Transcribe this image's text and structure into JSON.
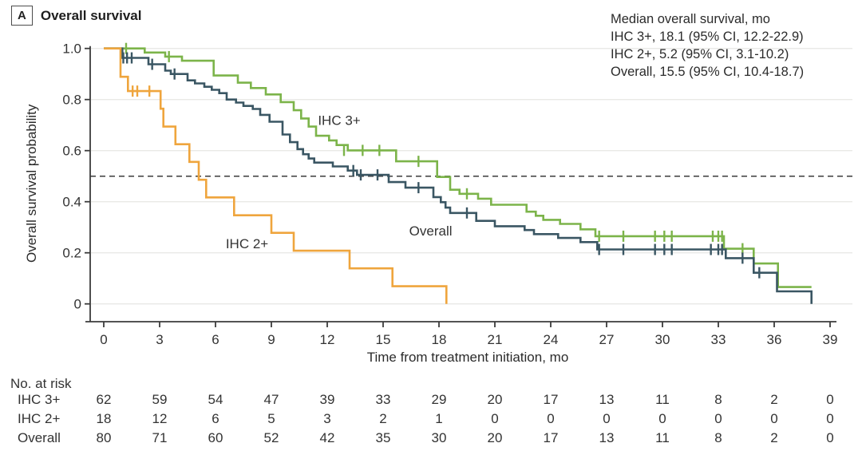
{
  "panel": {
    "badge": "A",
    "title": "Overall survival"
  },
  "legend": {
    "lines": [
      "Median overall survival, mo",
      "IHC 3+, 18.1 (95% CI, 12.2-22.9)",
      "IHC 2+, 5.2 (95% CI, 3.1-10.2)",
      "Overall, 15.5 (95% CI, 10.4-18.7)"
    ]
  },
  "chart_data": {
    "type": "line",
    "subtype": "kaplan-meier-step",
    "title": "Overall survival",
    "xlabel": "Time from treatment initiation, mo",
    "ylabel": "Overall survival probability",
    "xlim": [
      0,
      39
    ],
    "ylim": [
      0,
      1.0
    ],
    "x_ticks": [
      0,
      3,
      6,
      9,
      12,
      15,
      18,
      21,
      24,
      27,
      30,
      33,
      36,
      39
    ],
    "y_ticks": [
      {
        "label": "1.0",
        "value": 1.0
      },
      {
        "label": "0.8",
        "value": 0.8
      },
      {
        "label": "0.6",
        "value": 0.6
      },
      {
        "label": "0.4",
        "value": 0.4
      },
      {
        "label": "0.2",
        "value": 0.2
      },
      {
        "label": "0",
        "value": 0
      }
    ],
    "grid": true,
    "median_reference_line": 0.5,
    "colors": {
      "ihc3": "#7cb44a",
      "ihc2": "#efa53d",
      "overall": "#3a5663",
      "grid": "#e9e9e6",
      "axis": "#3b3b3b"
    },
    "series": [
      {
        "name": "IHC 3+",
        "color": "#7cb44a",
        "label_pos": [
          11.5,
          0.7
        ],
        "end": 38.0,
        "points": [
          [
            0,
            1
          ],
          [
            2.2,
            0.984
          ],
          [
            3.3,
            0.968
          ],
          [
            4.2,
            0.952
          ],
          [
            5.9,
            0.894
          ],
          [
            7.2,
            0.866
          ],
          [
            7.9,
            0.845
          ],
          [
            8.7,
            0.82
          ],
          [
            9.5,
            0.79
          ],
          [
            10.2,
            0.758
          ],
          [
            10.6,
            0.726
          ],
          [
            11.0,
            0.694
          ],
          [
            11.4,
            0.658
          ],
          [
            12.1,
            0.64
          ],
          [
            12.5,
            0.622
          ],
          [
            13.1,
            0.601
          ],
          [
            15.7,
            0.558
          ],
          [
            17.9,
            0.497
          ],
          [
            18.6,
            0.447
          ],
          [
            19.1,
            0.431
          ],
          [
            20.1,
            0.412
          ],
          [
            20.8,
            0.388
          ],
          [
            22.7,
            0.361
          ],
          [
            23.2,
            0.345
          ],
          [
            23.6,
            0.329
          ],
          [
            24.5,
            0.313
          ],
          [
            25.6,
            0.292
          ],
          [
            26.4,
            0.265
          ],
          [
            33.3,
            0.216
          ],
          [
            34.9,
            0.158
          ],
          [
            36.2,
            0.066
          ]
        ],
        "censors": [
          [
            1.2,
            1.0
          ],
          [
            3.5,
            0.968
          ],
          [
            12.9,
            0.601
          ],
          [
            13.9,
            0.601
          ],
          [
            14.8,
            0.601
          ],
          [
            16.9,
            0.558
          ],
          [
            19.5,
            0.431
          ],
          [
            26.6,
            0.265
          ],
          [
            27.9,
            0.265
          ],
          [
            29.6,
            0.265
          ],
          [
            30.1,
            0.265
          ],
          [
            30.5,
            0.265
          ],
          [
            32.7,
            0.265
          ],
          [
            33.0,
            0.265
          ],
          [
            33.2,
            0.265
          ],
          [
            34.3,
            0.216
          ]
        ]
      },
      {
        "name": "Overall",
        "color": "#3a5663",
        "label_pos": [
          16.4,
          0.268
        ],
        "end": 38.0,
        "points": [
          [
            0,
            1
          ],
          [
            1.0,
            0.963
          ],
          [
            2.4,
            0.938
          ],
          [
            3.3,
            0.913
          ],
          [
            3.6,
            0.9
          ],
          [
            4.5,
            0.875
          ],
          [
            4.9,
            0.863
          ],
          [
            5.4,
            0.85
          ],
          [
            5.8,
            0.838
          ],
          [
            6.2,
            0.825
          ],
          [
            6.6,
            0.8
          ],
          [
            7.1,
            0.788
          ],
          [
            7.5,
            0.775
          ],
          [
            8.0,
            0.763
          ],
          [
            8.4,
            0.74
          ],
          [
            8.9,
            0.713
          ],
          [
            9.6,
            0.663
          ],
          [
            10.0,
            0.633
          ],
          [
            10.4,
            0.606
          ],
          [
            10.7,
            0.586
          ],
          [
            11.0,
            0.569
          ],
          [
            11.3,
            0.553
          ],
          [
            12.3,
            0.538
          ],
          [
            13.1,
            0.522
          ],
          [
            13.6,
            0.505
          ],
          [
            15.3,
            0.477
          ],
          [
            16.2,
            0.455
          ],
          [
            17.7,
            0.418
          ],
          [
            18.1,
            0.398
          ],
          [
            18.35,
            0.377
          ],
          [
            18.6,
            0.356
          ],
          [
            20.0,
            0.325
          ],
          [
            21.0,
            0.304
          ],
          [
            22.6,
            0.289
          ],
          [
            23.1,
            0.273
          ],
          [
            24.4,
            0.258
          ],
          [
            25.6,
            0.242
          ],
          [
            26.5,
            0.213
          ],
          [
            33.4,
            0.179
          ],
          [
            34.9,
            0.122
          ],
          [
            36.15,
            0.049
          ],
          [
            38.0,
            0
          ]
        ],
        "censors": [
          [
            1.05,
            0.963
          ],
          [
            1.25,
            0.963
          ],
          [
            1.5,
            0.963
          ],
          [
            2.6,
            0.938
          ],
          [
            3.8,
            0.9
          ],
          [
            13.4,
            0.522
          ],
          [
            13.8,
            0.505
          ],
          [
            14.7,
            0.505
          ],
          [
            16.9,
            0.455
          ],
          [
            19.5,
            0.356
          ],
          [
            26.6,
            0.213
          ],
          [
            27.9,
            0.213
          ],
          [
            29.6,
            0.213
          ],
          [
            30.1,
            0.213
          ],
          [
            30.5,
            0.213
          ],
          [
            32.6,
            0.213
          ],
          [
            33.0,
            0.213
          ],
          [
            33.2,
            0.213
          ],
          [
            34.3,
            0.179
          ],
          [
            35.2,
            0.122
          ]
        ]
      },
      {
        "name": "IHC 2+",
        "color": "#efa53d",
        "label_pos": [
          6.55,
          0.218
        ],
        "end": 18.4,
        "points": [
          [
            0,
            1
          ],
          [
            0.9,
            0.889
          ],
          [
            1.3,
            0.833
          ],
          [
            3.05,
            0.764
          ],
          [
            3.2,
            0.694
          ],
          [
            3.85,
            0.625
          ],
          [
            4.6,
            0.556
          ],
          [
            5.1,
            0.486
          ],
          [
            5.5,
            0.417
          ],
          [
            7.0,
            0.347
          ],
          [
            9.0,
            0.278
          ],
          [
            10.2,
            0.208
          ],
          [
            13.2,
            0.139
          ],
          [
            15.5,
            0.069
          ],
          [
            18.4,
            0
          ]
        ],
        "censors": [
          [
            1.55,
            0.833
          ],
          [
            1.8,
            0.833
          ],
          [
            2.45,
            0.833
          ]
        ]
      }
    ],
    "risk_table": {
      "header": "No. at risk",
      "times": [
        0,
        3,
        6,
        9,
        12,
        15,
        18,
        21,
        24,
        27,
        30,
        33,
        36,
        39
      ],
      "rows": [
        {
          "label": "IHC 3+",
          "counts": [
            62,
            59,
            54,
            47,
            39,
            33,
            29,
            20,
            17,
            13,
            11,
            8,
            2,
            0
          ]
        },
        {
          "label": "IHC 2+",
          "counts": [
            18,
            12,
            6,
            5,
            3,
            2,
            1,
            0,
            0,
            0,
            0,
            0,
            0,
            0
          ]
        },
        {
          "label": "Overall",
          "counts": [
            80,
            71,
            60,
            52,
            42,
            35,
            30,
            20,
            17,
            13,
            11,
            8,
            2,
            0
          ]
        }
      ]
    }
  }
}
